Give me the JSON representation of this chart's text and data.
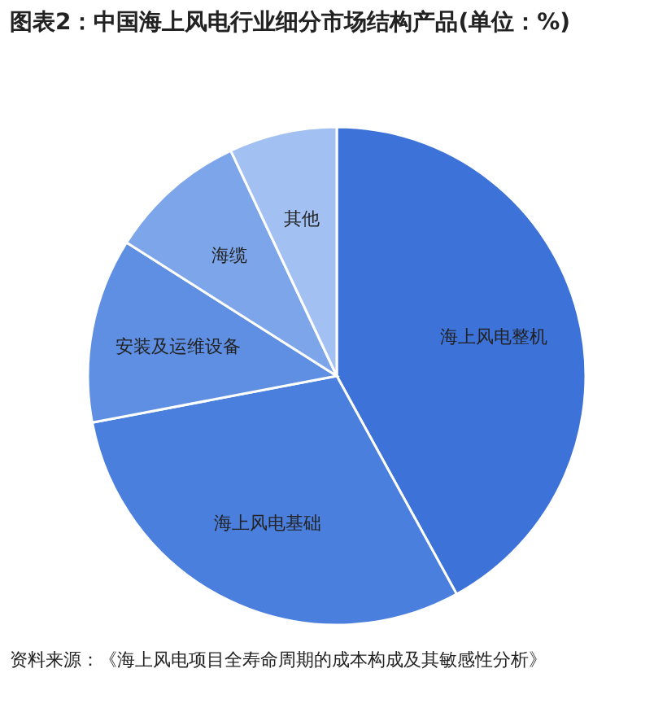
{
  "chart_data": {
    "type": "pie",
    "title": "图表2：中国海上风电行业细分市场结构产品(单位：%)",
    "categories": [
      "海上风电整机",
      "海上风电基础",
      "安装及运维设备",
      "海缆",
      "其他"
    ],
    "values": [
      42,
      30,
      12,
      9,
      7
    ],
    "colors": [
      "#3d72d9",
      "#4a7fdd",
      "#5f8fe2",
      "#7ca5ea",
      "#a2c0f2"
    ],
    "annotations": [
      "资料来源：《海上风电项目全寿命周期的成本构成及其敏感性分析》"
    ]
  }
}
